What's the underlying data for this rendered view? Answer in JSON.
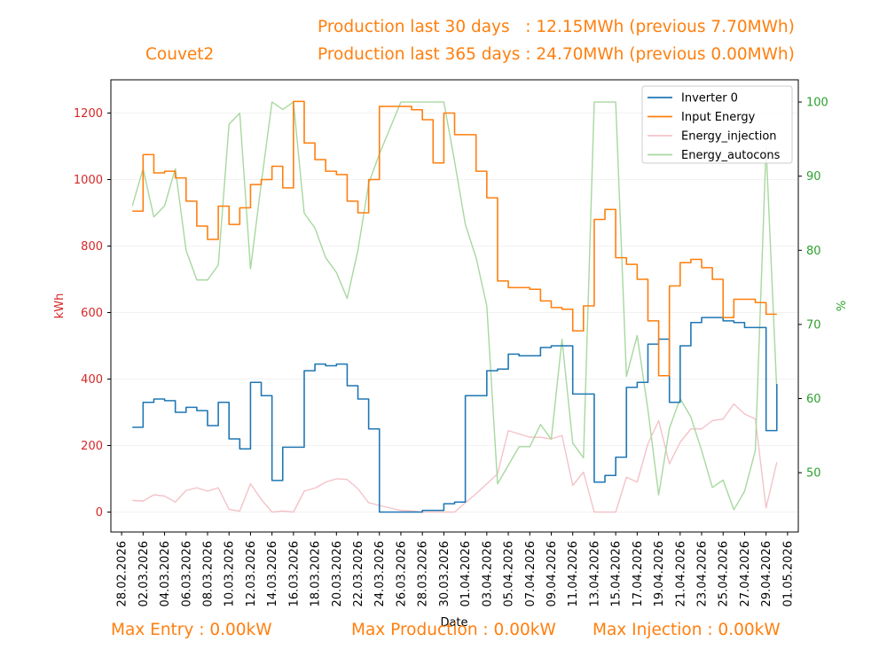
{
  "header": {
    "site_name": "Couvet2",
    "production_30": "Production last 30 days   : 12.15MWh (previous 7.70MWh)",
    "production_365": "Production last 365 days : 24.70MWh (previous 0.00MWh)"
  },
  "footer": {
    "max_entry": "Max Entry : 0.00kW",
    "max_production": "Max Production : 0.00kW",
    "max_injection": "Max Injection : 0.00kW"
  },
  "colors": {
    "inverter": "#1f77b4",
    "input": "#ff7f0e",
    "injection": "#f4c2c8",
    "autocons": "#a8d8a0",
    "left_axis": "#d62728",
    "right_axis": "#2ca02c",
    "header": "#ff7f0e"
  },
  "chart_data": {
    "type": "line",
    "xlabel": "Date",
    "ylabel_left": "kWh",
    "ylabel_right": "%",
    "x_range": [
      "2026-02-27",
      "2026-05-02"
    ],
    "ylim_left": [
      -60,
      1300
    ],
    "ylim_right": [
      42,
      103
    ],
    "yticks_left": [
      0,
      200,
      400,
      600,
      800,
      1000,
      1200
    ],
    "yticks_right": [
      50,
      60,
      70,
      80,
      90,
      100
    ],
    "x_tick_labels": [
      "28.02.2026",
      "02.03.2026",
      "04.03.2026",
      "06.03.2026",
      "08.03.2026",
      "10.03.2026",
      "12.03.2026",
      "14.03.2026",
      "16.03.2026",
      "18.03.2026",
      "20.03.2026",
      "22.03.2026",
      "24.03.2026",
      "26.03.2026",
      "28.03.2026",
      "30.03.2026",
      "01.04.2026",
      "03.04.2026",
      "05.04.2026",
      "07.04.2026",
      "09.04.2026",
      "11.04.2026",
      "13.04.2026",
      "15.04.2026",
      "17.04.2026",
      "19.04.2026",
      "21.04.2026",
      "23.04.2026",
      "25.04.2026",
      "27.04.2026",
      "29.04.2026",
      "01.05.2026"
    ],
    "x_tick_dates": [
      "2026-02-28",
      "2026-03-02",
      "2026-03-04",
      "2026-03-06",
      "2026-03-08",
      "2026-03-10",
      "2026-03-12",
      "2026-03-14",
      "2026-03-16",
      "2026-03-18",
      "2026-03-20",
      "2026-03-22",
      "2026-03-24",
      "2026-03-26",
      "2026-03-28",
      "2026-03-30",
      "2026-04-01",
      "2026-04-03",
      "2026-04-05",
      "2026-04-07",
      "2026-04-09",
      "2026-04-11",
      "2026-04-13",
      "2026-04-15",
      "2026-04-17",
      "2026-04-19",
      "2026-04-21",
      "2026-04-23",
      "2026-04-25",
      "2026-04-27",
      "2026-04-29",
      "2026-05-01"
    ],
    "legend_position": "top-right",
    "grid": true,
    "series": [
      {
        "name": "Inverter 0",
        "axis": "left",
        "style": "step",
        "x": [
          "2026-03-01",
          "2026-03-02",
          "2026-03-03",
          "2026-03-04",
          "2026-03-05",
          "2026-03-06",
          "2026-03-07",
          "2026-03-08",
          "2026-03-09",
          "2026-03-10",
          "2026-03-11",
          "2026-03-12",
          "2026-03-13",
          "2026-03-14",
          "2026-03-15",
          "2026-03-16",
          "2026-03-17",
          "2026-03-18",
          "2026-03-19",
          "2026-03-20",
          "2026-03-21",
          "2026-03-22",
          "2026-03-23",
          "2026-03-24",
          "2026-03-25",
          "2026-03-26",
          "2026-03-27",
          "2026-03-28",
          "2026-03-29",
          "2026-03-30",
          "2026-03-31",
          "2026-04-01",
          "2026-04-02",
          "2026-04-03",
          "2026-04-04",
          "2026-04-05",
          "2026-04-06",
          "2026-04-07",
          "2026-04-08",
          "2026-04-09",
          "2026-04-10",
          "2026-04-11",
          "2026-04-12",
          "2026-04-13",
          "2026-04-14",
          "2026-04-15",
          "2026-04-16",
          "2026-04-17",
          "2026-04-18",
          "2026-04-19",
          "2026-04-20",
          "2026-04-21",
          "2026-04-22",
          "2026-04-23",
          "2026-04-24",
          "2026-04-25",
          "2026-04-26",
          "2026-04-27",
          "2026-04-28",
          "2026-04-29",
          "2026-04-30"
        ],
        "values": [
          255,
          330,
          340,
          335,
          300,
          315,
          305,
          260,
          330,
          220,
          190,
          390,
          350,
          95,
          195,
          195,
          425,
          445,
          440,
          445,
          380,
          340,
          250,
          0,
          0,
          0,
          0,
          5,
          5,
          25,
          30,
          350,
          350,
          425,
          430,
          475,
          470,
          470,
          495,
          500,
          500,
          355,
          355,
          90,
          110,
          165,
          375,
          390,
          505,
          520,
          330,
          500,
          570,
          585,
          585,
          575,
          570,
          555,
          555,
          245,
          385
        ]
      },
      {
        "name": "Input Energy",
        "axis": "left",
        "style": "step",
        "x": [
          "2026-03-01",
          "2026-03-02",
          "2026-03-03",
          "2026-03-04",
          "2026-03-05",
          "2026-03-06",
          "2026-03-07",
          "2026-03-08",
          "2026-03-09",
          "2026-03-10",
          "2026-03-11",
          "2026-03-12",
          "2026-03-13",
          "2026-03-14",
          "2026-03-15",
          "2026-03-16",
          "2026-03-17",
          "2026-03-18",
          "2026-03-19",
          "2026-03-20",
          "2026-03-21",
          "2026-03-22",
          "2026-03-23",
          "2026-03-24",
          "2026-03-25",
          "2026-03-26",
          "2026-03-27",
          "2026-03-28",
          "2026-03-29",
          "2026-03-30",
          "2026-03-31",
          "2026-04-01",
          "2026-04-02",
          "2026-04-03",
          "2026-04-04",
          "2026-04-05",
          "2026-04-06",
          "2026-04-07",
          "2026-04-08",
          "2026-04-09",
          "2026-04-10",
          "2026-04-11",
          "2026-04-12",
          "2026-04-13",
          "2026-04-14",
          "2026-04-15",
          "2026-04-16",
          "2026-04-17",
          "2026-04-18",
          "2026-04-19",
          "2026-04-20",
          "2026-04-21",
          "2026-04-22",
          "2026-04-23",
          "2026-04-24",
          "2026-04-25",
          "2026-04-26",
          "2026-04-27",
          "2026-04-28",
          "2026-04-29",
          "2026-04-30"
        ],
        "values": [
          905,
          1075,
          1020,
          1025,
          1005,
          935,
          860,
          820,
          920,
          865,
          915,
          985,
          1000,
          1040,
          975,
          1235,
          1110,
          1060,
          1025,
          1015,
          935,
          900,
          1000,
          1220,
          1220,
          1220,
          1210,
          1180,
          1050,
          1200,
          1135,
          1135,
          1025,
          945,
          695,
          675,
          675,
          670,
          635,
          615,
          610,
          545,
          620,
          880,
          910,
          765,
          745,
          700,
          575,
          410,
          680,
          750,
          760,
          735,
          700,
          585,
          640,
          640,
          630,
          595,
          595
        ]
      },
      {
        "name": "Energy_injection",
        "axis": "left",
        "style": "line",
        "x": [
          "2026-03-01",
          "2026-03-02",
          "2026-03-03",
          "2026-03-04",
          "2026-03-05",
          "2026-03-06",
          "2026-03-07",
          "2026-03-08",
          "2026-03-09",
          "2026-03-10",
          "2026-03-11",
          "2026-03-12",
          "2026-03-13",
          "2026-03-14",
          "2026-03-15",
          "2026-03-16",
          "2026-03-17",
          "2026-03-18",
          "2026-03-19",
          "2026-03-20",
          "2026-03-21",
          "2026-03-22",
          "2026-03-23",
          "2026-03-24",
          "2026-03-25",
          "2026-03-26",
          "2026-03-27",
          "2026-03-28",
          "2026-03-29",
          "2026-03-30",
          "2026-03-31",
          "2026-04-01",
          "2026-04-02",
          "2026-04-03",
          "2026-04-04",
          "2026-04-05",
          "2026-04-06",
          "2026-04-07",
          "2026-04-08",
          "2026-04-09",
          "2026-04-10",
          "2026-04-11",
          "2026-04-12",
          "2026-04-13",
          "2026-04-14",
          "2026-04-15",
          "2026-04-16",
          "2026-04-17",
          "2026-04-18",
          "2026-04-19",
          "2026-04-20",
          "2026-04-21",
          "2026-04-22",
          "2026-04-23",
          "2026-04-24",
          "2026-04-25",
          "2026-04-26",
          "2026-04-27",
          "2026-04-28",
          "2026-04-29",
          "2026-04-30"
        ],
        "values": [
          35,
          33,
          52,
          48,
          30,
          65,
          73,
          63,
          73,
          8,
          3,
          85,
          38,
          0,
          3,
          0,
          63,
          72,
          90,
          100,
          98,
          70,
          28,
          20,
          12,
          5,
          3,
          0,
          0,
          0,
          0,
          28,
          55,
          85,
          115,
          245,
          235,
          225,
          225,
          220,
          230,
          80,
          120,
          0,
          0,
          0,
          105,
          90,
          205,
          275,
          145,
          210,
          250,
          250,
          275,
          280,
          325,
          295,
          280,
          12,
          150
        ]
      },
      {
        "name": "Energy_autocons",
        "axis": "right",
        "style": "line",
        "x": [
          "2026-03-01",
          "2026-03-02",
          "2026-03-03",
          "2026-03-04",
          "2026-03-05",
          "2026-03-06",
          "2026-03-07",
          "2026-03-08",
          "2026-03-09",
          "2026-03-10",
          "2026-03-11",
          "2026-03-12",
          "2026-03-13",
          "2026-03-14",
          "2026-03-15",
          "2026-03-16",
          "2026-03-17",
          "2026-03-18",
          "2026-03-19",
          "2026-03-20",
          "2026-03-21",
          "2026-03-22",
          "2026-03-23",
          "2026-03-24",
          "2026-03-25",
          "2026-03-26",
          "2026-03-27",
          "2026-03-28",
          "2026-03-29",
          "2026-03-30",
          "2026-03-31",
          "2026-04-01",
          "2026-04-02",
          "2026-04-03",
          "2026-04-04",
          "2026-04-05",
          "2026-04-06",
          "2026-04-07",
          "2026-04-08",
          "2026-04-09",
          "2026-04-10",
          "2026-04-11",
          "2026-04-12",
          "2026-04-13",
          "2026-04-14",
          "2026-04-15",
          "2026-04-16",
          "2026-04-17",
          "2026-04-18",
          "2026-04-19",
          "2026-04-20",
          "2026-04-21",
          "2026-04-22",
          "2026-04-23",
          "2026-04-24",
          "2026-04-25",
          "2026-04-26",
          "2026-04-27",
          "2026-04-28",
          "2026-04-29",
          "2026-04-30"
        ],
        "values": [
          86,
          91,
          84.5,
          86,
          91,
          80,
          76,
          76,
          78,
          97,
          98.5,
          77.5,
          89,
          100,
          99,
          100,
          85,
          83,
          79,
          77,
          73.5,
          80,
          89,
          93,
          96.5,
          100,
          100,
          100,
          100,
          100,
          92,
          83.5,
          79,
          72.5,
          48.5,
          51,
          53.5,
          53.5,
          56.5,
          54.5,
          68,
          54,
          52,
          100,
          100,
          100,
          63,
          68.5,
          58.5,
          47,
          56,
          60,
          57.5,
          53,
          48,
          49,
          45,
          47.5,
          53,
          94,
          61
        ]
      }
    ]
  }
}
